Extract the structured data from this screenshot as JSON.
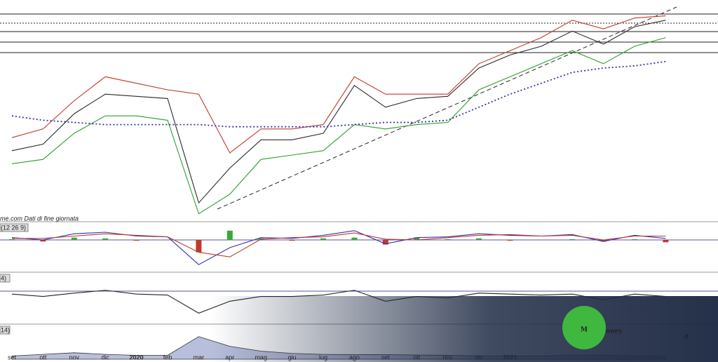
{
  "chart_data": [
    {
      "type": "line",
      "series": [
        {
          "name": "price",
          "color": "#2a2a2a",
          "style": "solid",
          "values": [
            32,
            35,
            49,
            58,
            57,
            56,
            8,
            24,
            37,
            37,
            40,
            62,
            52,
            56,
            57,
            70,
            76,
            80,
            87,
            81,
            89,
            92
          ]
        },
        {
          "name": "upper",
          "color": "#c0392b",
          "style": "solid",
          "values": [
            38,
            42,
            55,
            66,
            63,
            60,
            58,
            31,
            42,
            42,
            44,
            66,
            58,
            58,
            58,
            72,
            78,
            84,
            92,
            88,
            93,
            94
          ]
        },
        {
          "name": "lower",
          "color": "#2ca02c",
          "style": "solid",
          "values": [
            26,
            28,
            40,
            48,
            48,
            46,
            3,
            12,
            28,
            30,
            32,
            44,
            42,
            44,
            45,
            60,
            66,
            72,
            78,
            72,
            80,
            84
          ]
        },
        {
          "name": "ma200",
          "color": "#3333aa",
          "style": "dotted",
          "values": [
            48,
            46,
            45,
            44,
            44,
            44,
            44,
            43,
            43,
            43,
            43,
            44,
            45,
            45,
            46,
            52,
            58,
            63,
            68,
            70,
            71,
            73
          ]
        }
      ],
      "ylim": [
        0,
        100
      ],
      "source": "me.com Dati di fine giornata"
    },
    {
      "type": "line",
      "label": "(12 26 9)",
      "series": [
        {
          "name": "hist",
          "type": "bar",
          "color": "#3aa83a",
          "values": [
            0.1,
            -0.2,
            0.3,
            0.2,
            -0.1,
            0,
            -1.6,
            1.2,
            0.2,
            -0.1,
            0.2,
            0.3,
            -0.6,
            0.3,
            0.1,
            0.2,
            -0.1,
            0,
            0.1,
            -0.2,
            0.1,
            -0.3
          ]
        },
        {
          "name": "macd",
          "color": "#3333aa",
          "style": "solid",
          "values": [
            0.3,
            0,
            0.8,
            1,
            0.5,
            0.4,
            -3.2,
            -1,
            0.3,
            0.2,
            0.6,
            1.2,
            -0.5,
            0.3,
            0.4,
            0.8,
            0.6,
            0.5,
            0.7,
            -0.2,
            0.6,
            0.2
          ]
        },
        {
          "name": "signal",
          "color": "#c0392b",
          "style": "solid",
          "values": [
            0.2,
            0.2,
            0.5,
            0.8,
            0.6,
            0.4,
            -1.6,
            -2.2,
            0.1,
            0.3,
            0.4,
            0.9,
            0.1,
            0,
            0.3,
            0.6,
            0.7,
            0.5,
            0.6,
            0,
            0.5,
            0.5
          ]
        }
      ],
      "ylim": [
        -4,
        2
      ]
    },
    {
      "type": "line",
      "label": "4)",
      "series": [
        {
          "name": "rsi",
          "color": "#222222",
          "style": "solid",
          "values": [
            60,
            55,
            62,
            68,
            60,
            58,
            20,
            45,
            55,
            55,
            58,
            68,
            45,
            55,
            52,
            62,
            60,
            58,
            60,
            48,
            60,
            55
          ]
        }
      ],
      "ylim": [
        0,
        100
      ]
    },
    {
      "type": "area",
      "label": "14)",
      "categories": [
        "set",
        "ott",
        "nov",
        "dic",
        "2020",
        "feb",
        "mar",
        "apr",
        "mag",
        "giu",
        "lug",
        "ago",
        "set",
        "ott",
        "nov",
        "dic",
        "2021",
        null,
        null,
        null,
        null,
        null
      ],
      "series": [
        {
          "name": "vol",
          "color": "#b8bfdc",
          "values": [
            10,
            15,
            20,
            15,
            12,
            12,
            70,
            40,
            25,
            18,
            15,
            14,
            14,
            13,
            12,
            10,
            10,
            10,
            12,
            12,
            10,
            9
          ]
        }
      ],
      "ylim": [
        0,
        100
      ]
    }
  ],
  "logo": {
    "initial": "M",
    "rest": "oney",
    "suffix": ".it"
  }
}
